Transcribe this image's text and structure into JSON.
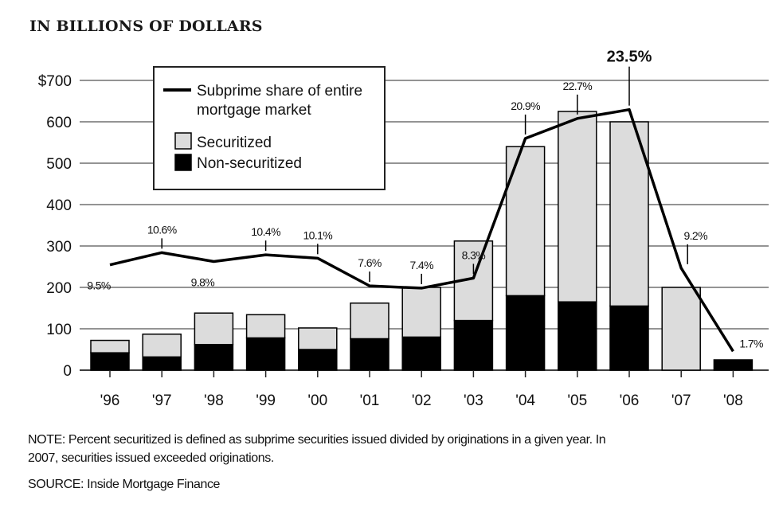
{
  "chart_data": {
    "type": "bar",
    "title": "IN BILLIONS OF DOLLARS",
    "categories": [
      "'96",
      "'97",
      "'98",
      "'99",
      "'00",
      "'01",
      "'02",
      "'03",
      "'04",
      "'05",
      "'06",
      "'07",
      "'08"
    ],
    "series": [
      {
        "name": "Securitized",
        "type": "bar",
        "stack": "total",
        "color": "#dcdcdc",
        "values": [
          30,
          55,
          76,
          56,
          52,
          86,
          120,
          192,
          360,
          460,
          445,
          200,
          0
        ]
      },
      {
        "name": "Non-securitized",
        "type": "bar",
        "stack": "total",
        "color": "#000000",
        "values": [
          42,
          32,
          62,
          78,
          50,
          76,
          80,
          120,
          180,
          165,
          155,
          0,
          25
        ]
      },
      {
        "name": "Subprime share of entire mortgage market",
        "type": "line",
        "unit": "%",
        "color": "#000000",
        "values": [
          9.5,
          10.6,
          9.8,
          10.4,
          10.1,
          7.6,
          7.4,
          8.3,
          20.9,
          22.7,
          23.5,
          9.2,
          1.7
        ],
        "labels": [
          "9.5%",
          "10.6%",
          "9.8%",
          "10.4%",
          "10.1%",
          "7.6%",
          "7.4%",
          "8.3%",
          "20.9%",
          "22.7%",
          "23.5%",
          "9.2%",
          "1.7%"
        ]
      }
    ],
    "y_ticks": [
      "$700",
      "600",
      "500",
      "400",
      "300",
      "200",
      "100",
      "0"
    ],
    "ylim": [
      0,
      700
    ],
    "line_scale_note": "share axis not printed; 28% maps to 750 on value axis",
    "grid": "horizontal",
    "legend_placement": "top-left"
  },
  "legend": {
    "line_label_1": "Subprime share of entire",
    "line_label_2": "mortgage market",
    "securitized_label": "Securitized",
    "nonsecuritized_label": "Non-securitized"
  },
  "note": {
    "line1": "NOTE: Percent securitized is defined as subprime securities issued divided by originations in a given year. In",
    "line2": "2007, securities issued exceeded originations."
  },
  "source": "SOURCE: Inside Mortgage Finance"
}
